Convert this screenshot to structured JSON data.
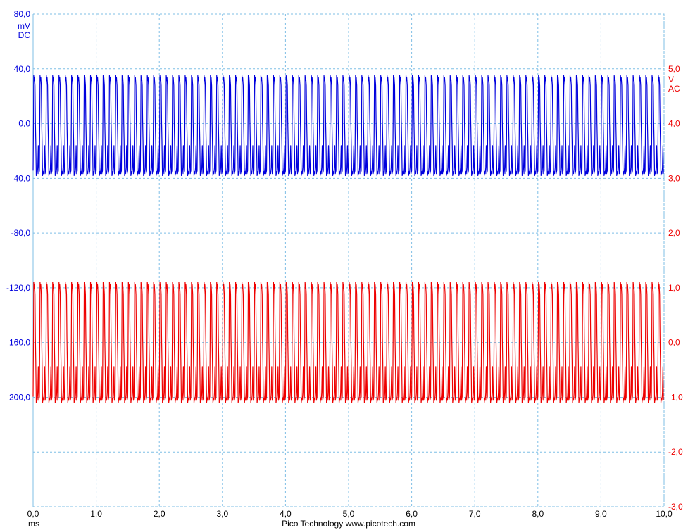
{
  "chart_data": {
    "type": "line",
    "title": "",
    "footer": "Pico Technology   www.picotech.com",
    "x_axis": {
      "unit_label": "ms",
      "range": [
        0,
        10
      ],
      "ticks": [
        "0,0",
        "1,0",
        "2,0",
        "3,0",
        "4,0",
        "5,0",
        "6,0",
        "7,0",
        "8,0",
        "9,0",
        "10,0"
      ]
    },
    "left_axis": {
      "unit_label": "mV",
      "coupling_label": "DC",
      "color": "#0000dd",
      "range": [
        -280,
        80
      ],
      "ticks": [
        "80,0",
        "40,0",
        "0,0",
        "-40,0",
        "-80,0",
        "-120,0",
        "-160,0",
        "-200,0"
      ]
    },
    "right_axis": {
      "unit_label": "V",
      "coupling_label": "AC",
      "color": "#ee0000",
      "range": [
        -3,
        6
      ],
      "ticks": [
        "5,0",
        "4,0",
        "3,0",
        "2,0",
        "1,0",
        "0,0",
        "-1,0",
        "-2,0",
        "-3,0"
      ]
    },
    "grid": true,
    "series": [
      {
        "axis": "left",
        "color": "#0000dd",
        "waveform": "square-like periodic",
        "high": 35,
        "low": -38,
        "cycles": 100,
        "x_range": [
          0,
          10
        ]
      },
      {
        "axis": "right",
        "color": "#ee0000",
        "waveform": "square-like periodic",
        "high": 1.1,
        "low": -1.1,
        "cycles": 100,
        "x_range": [
          0,
          10
        ]
      }
    ]
  }
}
